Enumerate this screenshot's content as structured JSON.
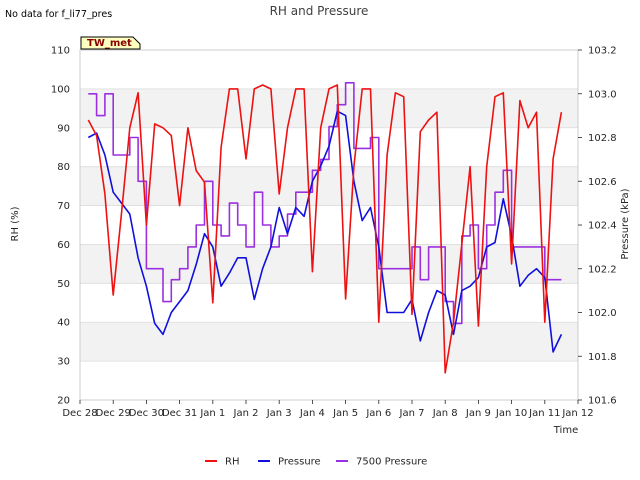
{
  "note": "No data for f_li77_pres",
  "station_label": "TW_met",
  "colors": {
    "rh": "#ee1111",
    "pressure": "#1010dd",
    "pressure7500": "#9b30e0",
    "band": "#f2f2f2",
    "grid": "#dcdcdc",
    "station_box": "#ffffc0"
  },
  "chart_data": {
    "type": "line",
    "title": "RH and Pressure",
    "xlabel": "Time",
    "ylabel_left": "RH (%)",
    "ylabel_right": "Pressure (kPa)",
    "x_range_days": [
      "Dec 28",
      "Jan 12"
    ],
    "x_ticks": [
      "Dec 28",
      "Dec 29",
      "Dec 30",
      "Dec 31",
      "Jan 1",
      "Jan 2",
      "Jan 3",
      "Jan 4",
      "Jan 5",
      "Jan 6",
      "Jan 7",
      "Jan 8",
      "Jan 9",
      "Jan 10",
      "Jan 11",
      "Jan 12"
    ],
    "ylim_left": [
      20,
      110
    ],
    "yticks_left": [
      "20",
      "30",
      "40",
      "50",
      "60",
      "70",
      "80",
      "90",
      "100",
      "110"
    ],
    "ylim_right": [
      101.6,
      103.2
    ],
    "yticks_right": [
      "101.6",
      "101.8",
      "102.0",
      "102.2",
      "102.4",
      "102.6",
      "102.8",
      "103.0",
      "103.2"
    ],
    "grid": true,
    "legend_position": "bottom-center",
    "series": [
      {
        "name": "RH",
        "axis": "left",
        "x": [
          "Dec 28 06:00",
          "Dec 28 12:00",
          "Dec 28 18:00",
          "Dec 29 00:00",
          "Dec 29 06:00",
          "Dec 29 12:00",
          "Dec 29 18:00",
          "Dec 30 00:00",
          "Dec 30 06:00",
          "Dec 30 12:00",
          "Dec 30 18:00",
          "Dec 31 00:00",
          "Dec 31 06:00",
          "Dec 31 12:00",
          "Dec 31 18:00",
          "Jan 1 00:00",
          "Jan 1 06:00",
          "Jan 1 12:00",
          "Jan 1 18:00",
          "Jan 2 00:00",
          "Jan 2 06:00",
          "Jan 2 12:00",
          "Jan 2 18:00",
          "Jan 3 00:00",
          "Jan 3 06:00",
          "Jan 3 12:00",
          "Jan 3 18:00",
          "Jan 4 00:00",
          "Jan 4 06:00",
          "Jan 4 12:00",
          "Jan 4 18:00",
          "Jan 5 00:00",
          "Jan 5 06:00",
          "Jan 5 12:00",
          "Jan 5 18:00",
          "Jan 6 00:00",
          "Jan 6 06:00",
          "Jan 6 12:00",
          "Jan 6 18:00",
          "Jan 7 00:00",
          "Jan 7 06:00",
          "Jan 7 12:00",
          "Jan 7 18:00",
          "Jan 8 00:00",
          "Jan 8 06:00",
          "Jan 8 12:00",
          "Jan 8 18:00",
          "Jan 9 00:00",
          "Jan 9 06:00",
          "Jan 9 12:00",
          "Jan 9 18:00",
          "Jan 10 00:00",
          "Jan 10 06:00",
          "Jan 10 12:00",
          "Jan 10 18:00",
          "Jan 11 00:00",
          "Jan 11 06:00",
          "Jan 11 12:00"
        ],
        "values": [
          92,
          88,
          73,
          47,
          68,
          90,
          99,
          65,
          91,
          90,
          88,
          70,
          90,
          79,
          76,
          45,
          85,
          100,
          100,
          82,
          100,
          101,
          100,
          73,
          90,
          100,
          100,
          53,
          90,
          100,
          101,
          46,
          80,
          100,
          100,
          40,
          83,
          99,
          98,
          42,
          89,
          92,
          94,
          27,
          40,
          60,
          80,
          39,
          80,
          98,
          99,
          55,
          97,
          90,
          94,
          40,
          82,
          94
        ]
      },
      {
        "name": "Pressure",
        "axis": "right",
        "x": [
          "Dec 28 06:00",
          "Dec 28 12:00",
          "Dec 28 18:00",
          "Dec 29 00:00",
          "Dec 29 06:00",
          "Dec 29 12:00",
          "Dec 29 18:00",
          "Dec 30 00:00",
          "Dec 30 06:00",
          "Dec 30 12:00",
          "Dec 30 18:00",
          "Dec 31 00:00",
          "Dec 31 06:00",
          "Dec 31 12:00",
          "Dec 31 18:00",
          "Jan 1 00:00",
          "Jan 1 06:00",
          "Jan 1 12:00",
          "Jan 1 18:00",
          "Jan 2 00:00",
          "Jan 2 06:00",
          "Jan 2 12:00",
          "Jan 2 18:00",
          "Jan 3 00:00",
          "Jan 3 06:00",
          "Jan 3 12:00",
          "Jan 3 18:00",
          "Jan 4 00:00",
          "Jan 4 06:00",
          "Jan 4 12:00",
          "Jan 4 18:00",
          "Jan 5 00:00",
          "Jan 5 06:00",
          "Jan 5 12:00",
          "Jan 5 18:00",
          "Jan 6 00:00",
          "Jan 6 06:00",
          "Jan 6 12:00",
          "Jan 6 18:00",
          "Jan 7 00:00",
          "Jan 7 06:00",
          "Jan 7 12:00",
          "Jan 7 18:00",
          "Jan 8 00:00",
          "Jan 8 06:00",
          "Jan 8 12:00",
          "Jan 8 18:00",
          "Jan 9 00:00",
          "Jan 9 06:00",
          "Jan 9 12:00",
          "Jan 9 18:00",
          "Jan 10 00:00",
          "Jan 10 06:00",
          "Jan 10 12:00",
          "Jan 10 18:00",
          "Jan 11 00:00",
          "Jan 11 06:00",
          "Jan 11 12:00"
        ],
        "values": [
          102.8,
          102.82,
          102.72,
          102.55,
          102.5,
          102.45,
          102.25,
          102.12,
          101.95,
          101.9,
          102.0,
          102.05,
          102.1,
          102.22,
          102.36,
          102.3,
          102.12,
          102.18,
          102.25,
          102.25,
          102.06,
          102.2,
          102.3,
          102.48,
          102.36,
          102.48,
          102.44,
          102.6,
          102.67,
          102.76,
          102.92,
          102.9,
          102.6,
          102.42,
          102.48,
          102.3,
          102.0,
          102.0,
          102.0,
          102.06,
          101.87,
          102.0,
          102.1,
          102.08,
          101.9,
          102.1,
          102.12,
          102.16,
          102.3,
          102.32,
          102.52,
          102.35,
          102.12,
          102.17,
          102.2,
          102.16,
          101.82,
          101.9
        ]
      },
      {
        "name": "7500 Pressure",
        "axis": "right",
        "x": [
          "Dec 28 06:00",
          "Dec 28 12:00",
          "Dec 28 18:00",
          "Dec 29 00:00",
          "Dec 29 06:00",
          "Dec 29 12:00",
          "Dec 29 18:00",
          "Dec 30 00:00",
          "Dec 30 06:00",
          "Dec 30 12:00",
          "Dec 30 18:00",
          "Dec 31 00:00",
          "Dec 31 06:00",
          "Dec 31 12:00",
          "Dec 31 18:00",
          "Jan 1 00:00",
          "Jan 1 06:00",
          "Jan 1 12:00",
          "Jan 1 18:00",
          "Jan 2 00:00",
          "Jan 2 06:00",
          "Jan 2 12:00",
          "Jan 2 18:00",
          "Jan 3 00:00",
          "Jan 3 06:00",
          "Jan 3 12:00",
          "Jan 3 18:00",
          "Jan 4 00:00",
          "Jan 4 06:00",
          "Jan 4 12:00",
          "Jan 4 18:00",
          "Jan 5 00:00",
          "Jan 5 06:00",
          "Jan 5 12:00",
          "Jan 5 18:00",
          "Jan 6 00:00",
          "Jan 6 06:00",
          "Jan 6 12:00",
          "Jan 6 18:00",
          "Jan 7 00:00",
          "Jan 7 06:00",
          "Jan 7 12:00",
          "Jan 7 18:00",
          "Jan 8 00:00",
          "Jan 8 06:00",
          "Jan 8 12:00",
          "Jan 8 18:00",
          "Jan 9 00:00",
          "Jan 9 06:00",
          "Jan 9 12:00",
          "Jan 9 18:00",
          "Jan 10 00:00",
          "Jan 10 06:00",
          "Jan 10 12:00",
          "Jan 10 18:00",
          "Jan 11 00:00",
          "Jan 11 06:00",
          "Jan 11 12:00"
        ],
        "values": [
          103.0,
          102.9,
          103.0,
          102.72,
          102.72,
          102.8,
          102.6,
          102.2,
          102.2,
          102.05,
          102.15,
          102.2,
          102.3,
          102.4,
          102.6,
          102.4,
          102.35,
          102.5,
          102.4,
          102.3,
          102.55,
          102.4,
          102.3,
          102.35,
          102.45,
          102.55,
          102.55,
          102.65,
          102.7,
          102.85,
          102.95,
          103.05,
          102.75,
          102.75,
          102.8,
          102.2,
          102.2,
          102.2,
          102.2,
          102.3,
          102.15,
          102.3,
          102.3,
          102.05,
          101.95,
          102.35,
          102.4,
          102.2,
          102.4,
          102.55,
          102.65,
          102.3,
          102.3,
          102.3,
          102.3,
          102.15,
          102.15,
          102.15
        ]
      }
    ]
  }
}
